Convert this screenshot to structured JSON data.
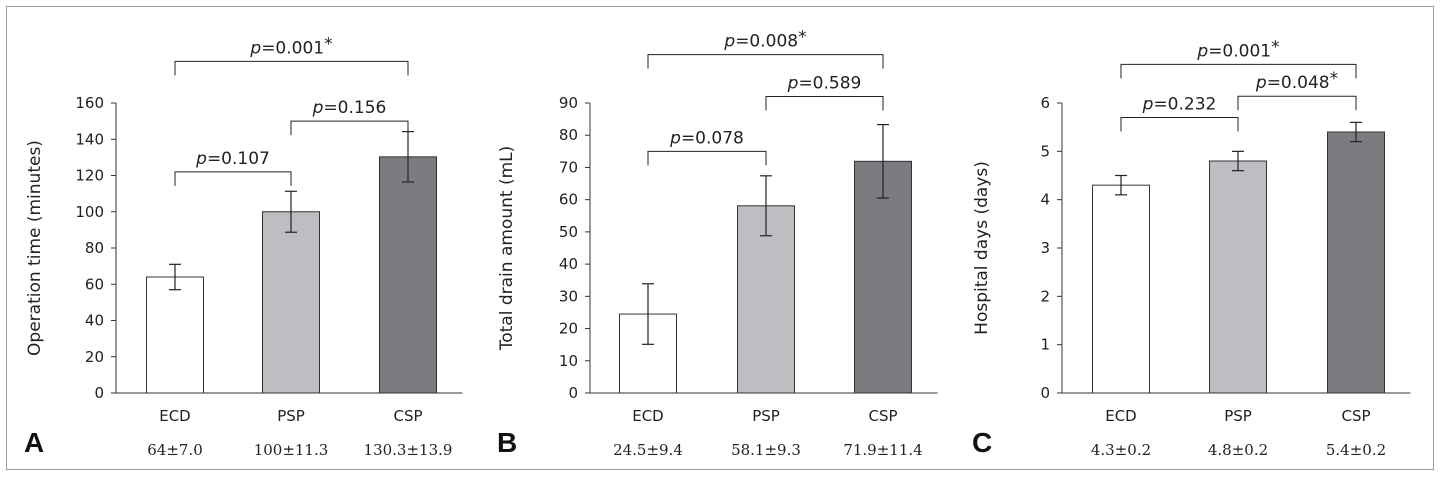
{
  "chart_data": [
    {
      "type": "bar",
      "panel_label": "A",
      "ylabel": "Operation time (minutes)",
      "ylim": [
        0,
        160
      ],
      "yticks": [
        0,
        20,
        40,
        60,
        80,
        100,
        120,
        140,
        160
      ],
      "categories": [
        "ECD",
        "PSP",
        "CSP"
      ],
      "values": [
        64,
        100,
        130.3
      ],
      "errors": [
        7.0,
        11.3,
        13.9
      ],
      "stats_text": [
        "64±7.0",
        "100±11.3",
        "130.3±13.9"
      ],
      "colors": [
        "#ffffff",
        "#bdbec1",
        "#7b7c80"
      ],
      "comparisons": [
        {
          "from": 0,
          "to": 1,
          "p_prefix": "p",
          "p_text": "=0.107",
          "star": "",
          "level": 122
        },
        {
          "from": 1,
          "to": 2,
          "p_prefix": "p",
          "p_text": "=0.156",
          "star": "",
          "level": 150
        },
        {
          "from": 0,
          "to": 2,
          "p_prefix": "p",
          "p_text": "=0.001",
          "star": "*",
          "level": 183
        }
      ]
    },
    {
      "type": "bar",
      "panel_label": "B",
      "ylabel": "Total drain amount (mL)",
      "ylim": [
        0,
        90
      ],
      "yticks": [
        0,
        10,
        20,
        30,
        40,
        50,
        60,
        70,
        80,
        90
      ],
      "categories": [
        "ECD",
        "PSP",
        "CSP"
      ],
      "values": [
        24.5,
        58.1,
        71.9
      ],
      "errors": [
        9.4,
        9.3,
        11.4
      ],
      "stats_text": [
        "24.5±9.4",
        "58.1±9.3",
        "71.9±11.4"
      ],
      "colors": [
        "#ffffff",
        "#bdbec1",
        "#7b7c80"
      ],
      "comparisons": [
        {
          "from": 0,
          "to": 1,
          "p_prefix": "p",
          "p_text": "=0.078",
          "star": "",
          "level": 75
        },
        {
          "from": 1,
          "to": 2,
          "p_prefix": "p",
          "p_text": "=0.589",
          "star": "",
          "level": 92
        },
        {
          "from": 0,
          "to": 2,
          "p_prefix": "p",
          "p_text": "=0.008",
          "star": "*",
          "level": 105
        }
      ]
    },
    {
      "type": "bar",
      "panel_label": "C",
      "ylabel": "Hospital days (days)",
      "ylim": [
        0,
        6
      ],
      "yticks": [
        0,
        1,
        2,
        3,
        4,
        5,
        6
      ],
      "categories": [
        "ECD",
        "PSP",
        "CSP"
      ],
      "values": [
        4.3,
        4.8,
        5.4
      ],
      "errors": [
        0.2,
        0.2,
        0.2
      ],
      "stats_text": [
        "4.3±0.2",
        "4.8±0.2",
        "5.4±0.2"
      ],
      "colors": [
        "#ffffff",
        "#bdbec1",
        "#7b7c80"
      ],
      "comparisons": [
        {
          "from": 0,
          "to": 1,
          "p_prefix": "p",
          "p_text": "=0.232",
          "star": "",
          "level": 5.7
        },
        {
          "from": 1,
          "to": 2,
          "p_prefix": "p",
          "p_text": "=0.048",
          "star": "*",
          "level": 6.14
        },
        {
          "from": 0,
          "to": 2,
          "p_prefix": "p",
          "p_text": "=0.001",
          "star": "*",
          "level": 6.8
        }
      ]
    }
  ]
}
